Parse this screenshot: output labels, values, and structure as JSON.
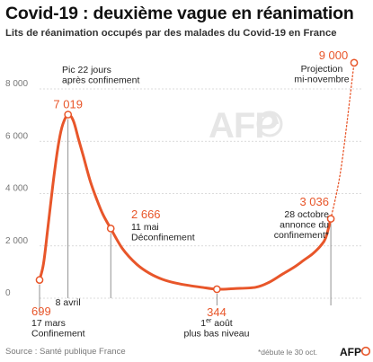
{
  "title": "Covid-19 : deuxième vague en réanimation",
  "subtitle": "Lits de réanimation occupés par des malades du Covid-19 en France",
  "source": "Source : Santé publique France",
  "footnote": "*débute le 30 oct.",
  "watermark": "AFP",
  "logo": "AFP",
  "colors": {
    "line": "#e8562a",
    "accent": "#e8562a",
    "grid": "#cfcfcf"
  },
  "chart_data": {
    "type": "line",
    "title": "Covid-19 : deuxième vague en réanimation",
    "subtitle": "Lits de réanimation occupés par des malades du Covid-19 en France",
    "ylim": [
      0,
      9000
    ],
    "yticks": [
      0,
      2000,
      4000,
      6000,
      8000
    ],
    "ytick_labels": [
      "0",
      "2 000",
      "4 000",
      "6 000",
      "8 000"
    ],
    "grid": true,
    "series": [
      {
        "values": [
          [
            "2020-03-17",
            699
          ],
          [
            "2020-03-20",
            1300
          ],
          [
            "2020-03-23",
            2500
          ],
          [
            "2020-03-26",
            3800
          ],
          [
            "2020-03-29",
            5000
          ],
          [
            "2020-04-01",
            6000
          ],
          [
            "2020-04-04",
            6650
          ],
          [
            "2020-04-08",
            7019
          ],
          [
            "2020-04-12",
            6800
          ],
          [
            "2020-04-16",
            6100
          ],
          [
            "2020-04-20",
            5400
          ],
          [
            "2020-04-25",
            4500
          ],
          [
            "2020-04-30",
            3800
          ],
          [
            "2020-05-05",
            3200
          ],
          [
            "2020-05-11",
            2666
          ],
          [
            "2020-05-20",
            1900
          ],
          [
            "2020-05-31",
            1300
          ],
          [
            "2020-06-10",
            950
          ],
          [
            "2020-06-20",
            720
          ],
          [
            "2020-06-30",
            580
          ],
          [
            "2020-07-10",
            490
          ],
          [
            "2020-07-20",
            420
          ],
          [
            "2020-08-01",
            344
          ],
          [
            "2020-08-15",
            370
          ],
          [
            "2020-08-31",
            420
          ],
          [
            "2020-09-10",
            600
          ],
          [
            "2020-09-20",
            900
          ],
          [
            "2020-09-30",
            1200
          ],
          [
            "2020-10-07",
            1450
          ],
          [
            "2020-10-14",
            1700
          ],
          [
            "2020-10-20",
            2000
          ],
          [
            "2020-10-24",
            2300
          ],
          [
            "2020-10-28",
            3036
          ]
        ]
      },
      {
        "style": "dotted",
        "values": [
          [
            "2020-10-28",
            3036
          ],
          [
            "2020-11-05",
            5000
          ],
          [
            "2020-11-15",
            9000
          ]
        ]
      }
    ],
    "annotations": [
      {
        "date": "2020-03-17",
        "value": "699",
        "lines": [
          "17 mars",
          "Confinement"
        ]
      },
      {
        "date": "2020-04-08",
        "value": "7 019",
        "lines": [
          "Pic 22 jours",
          "après confinement"
        ],
        "axis_label": "8 avril"
      },
      {
        "date": "2020-05-11",
        "value": "2 666",
        "lines": [
          "11 mai",
          "Déconfinement"
        ]
      },
      {
        "date": "2020-08-01",
        "value": "344",
        "lines": [
          "1er août",
          "plus bas niveau"
        ]
      },
      {
        "date": "2020-10-28",
        "value": "3 036",
        "lines": [
          "28 octobre",
          "annonce du",
          "confinement*"
        ]
      },
      {
        "date": "2020-11-15",
        "value": "9 000",
        "lines": [
          "Projection",
          "mi-novembre"
        ]
      }
    ]
  }
}
